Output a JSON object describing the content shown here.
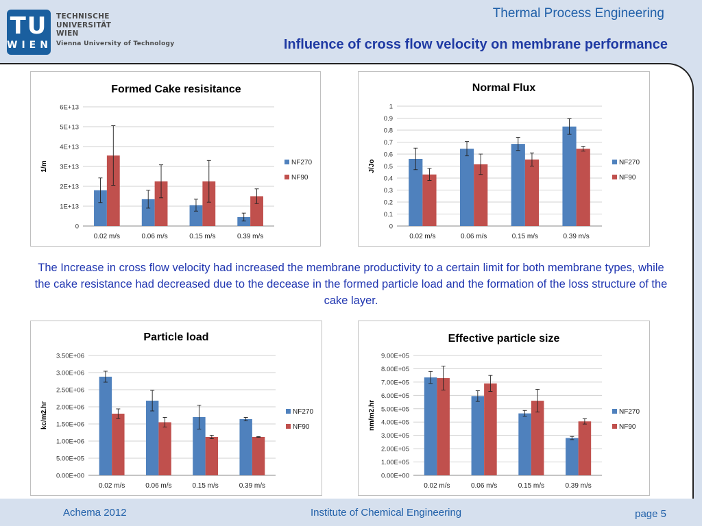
{
  "header": {
    "logo_top": "TU",
    "logo_bottom": "WIEN",
    "university_lines": [
      "TECHNISCHE",
      "UNIVERSITÄT",
      "WIEN"
    ],
    "university_sub": "Vienna University of Technology",
    "department": "Thermal Process Engineering",
    "slide_title": "Influence of cross flow velocity on membrane performance"
  },
  "caption": "The Increase in cross flow velocity had increased the membrane productivity to a certain limit for both membrane types, while the cake resistance had decreased due to the decease in the formed particle load and the formation of the loss structure of the cake layer.",
  "footer": {
    "left": "Achema 2012",
    "center": "Institute of Chemical Engineering",
    "right": "page 5"
  },
  "colors": {
    "NF270": "#4f81bd",
    "NF90": "#c0504d",
    "title_blue": "#1f3aa3",
    "text_blue": "#1f5fa8"
  },
  "chart_data": [
    {
      "type": "bar",
      "title": "Formed Cake resisitance",
      "ylabel": "1/m",
      "categories": [
        "0.02 m/s",
        "0.06 m/s",
        "0.15 m/s",
        "0.39 m/s"
      ],
      "ylim": [
        0,
        60000000000000.0
      ],
      "ytick_values": [
        0,
        10000000000000.0,
        20000000000000.0,
        30000000000000.0,
        40000000000000.0,
        50000000000000.0,
        60000000000000.0
      ],
      "ytick_labels": [
        "0",
        "1E+13",
        "2E+13",
        "3E+13",
        "4E+13",
        "5E+13",
        "6E+13"
      ],
      "series": [
        {
          "name": "NF270",
          "values": [
            18000000000000.0,
            13500000000000.0,
            10500000000000.0,
            4500000000000.0
          ],
          "err": [
            6200000000000.0,
            4500000000000.0,
            3000000000000.0,
            2000000000000.0
          ]
        },
        {
          "name": "NF90",
          "values": [
            35500000000000.0,
            22500000000000.0,
            22500000000000.0,
            15000000000000.0
          ],
          "err": [
            15000000000000.0,
            8300000000000.0,
            10500000000000.0,
            3700000000000.0
          ]
        }
      ],
      "grid": true,
      "legend": "right"
    },
    {
      "type": "bar",
      "title": "Normal Flux",
      "ylabel": "J/Jo",
      "categories": [
        "0.02 m/s",
        "0.06 m/s",
        "0.15 m/s",
        "0.39 m/s"
      ],
      "ylim": [
        0,
        1
      ],
      "ytick_values": [
        0,
        0.1,
        0.2,
        0.3,
        0.4,
        0.5,
        0.6,
        0.7,
        0.8,
        0.9,
        1
      ],
      "ytick_labels": [
        "0",
        "0.1",
        "0.2",
        "0.3",
        "0.4",
        "0.5",
        "0.6",
        "0.7",
        "0.8",
        "0.9",
        "1"
      ],
      "series": [
        {
          "name": "NF270",
          "values": [
            0.56,
            0.645,
            0.685,
            0.83
          ],
          "err": [
            0.09,
            0.06,
            0.055,
            0.065
          ]
        },
        {
          "name": "NF90",
          "values": [
            0.43,
            0.515,
            0.555,
            0.645
          ],
          "err": [
            0.05,
            0.085,
            0.055,
            0.02
          ]
        }
      ],
      "grid": true,
      "legend": "right"
    },
    {
      "type": "bar",
      "title": "Particle load",
      "ylabel": "kc/m2.hr",
      "categories": [
        "0.02 m/s",
        "0.06 m/s",
        "0.15 m/s",
        "0.39 m/s"
      ],
      "ylim": [
        0,
        3500000.0
      ],
      "ytick_values": [
        0,
        500000.0,
        1000000.0,
        1500000.0,
        2000000.0,
        2500000.0,
        3000000.0,
        3500000.0
      ],
      "ytick_labels": [
        "0.00E+00",
        "5.00E+05",
        "1.00E+06",
        "1.50E+06",
        "2.00E+06",
        "2.50E+06",
        "3.00E+06",
        "3.50E+06"
      ],
      "series": [
        {
          "name": "NF270",
          "values": [
            2880000.0,
            2180000.0,
            1700000.0,
            1640000.0
          ],
          "err": [
            160000.0,
            300000.0,
            350000.0,
            50000.0
          ]
        },
        {
          "name": "NF90",
          "values": [
            1800000.0,
            1550000.0,
            1120000.0,
            1120000.0
          ],
          "err": [
            140000.0,
            140000.0,
            50000.0,
            10000.0
          ]
        }
      ],
      "grid": true,
      "legend": "right"
    },
    {
      "type": "bar",
      "title": "Effective particle size",
      "ylabel": "nm/m2.hr",
      "categories": [
        "0.02 m/s",
        "0.06 m/s",
        "0.15 m/s",
        "0.39 m/s"
      ],
      "ylim": [
        0,
        900000.0
      ],
      "ytick_values": [
        0,
        100000.0,
        200000.0,
        300000.0,
        400000.0,
        500000.0,
        600000.0,
        700000.0,
        800000.0,
        900000.0
      ],
      "ytick_labels": [
        "0.00E+00",
        "1.00E+05",
        "2.00E+05",
        "3.00E+05",
        "4.00E+05",
        "5.00E+05",
        "6.00E+05",
        "7.00E+05",
        "8.00E+05",
        "9.00E+05"
      ],
      "series": [
        {
          "name": "NF270",
          "values": [
            735000.0,
            595000.0,
            465000.0,
            280000.0
          ],
          "err": [
            45000.0,
            40000.0,
            22000.0,
            12000.0
          ]
        },
        {
          "name": "NF90",
          "values": [
            730000.0,
            690000.0,
            560000.0,
            405000.0
          ],
          "err": [
            90000.0,
            60000.0,
            85000.0,
            20000.0
          ]
        }
      ],
      "grid": true,
      "legend": "right"
    }
  ]
}
